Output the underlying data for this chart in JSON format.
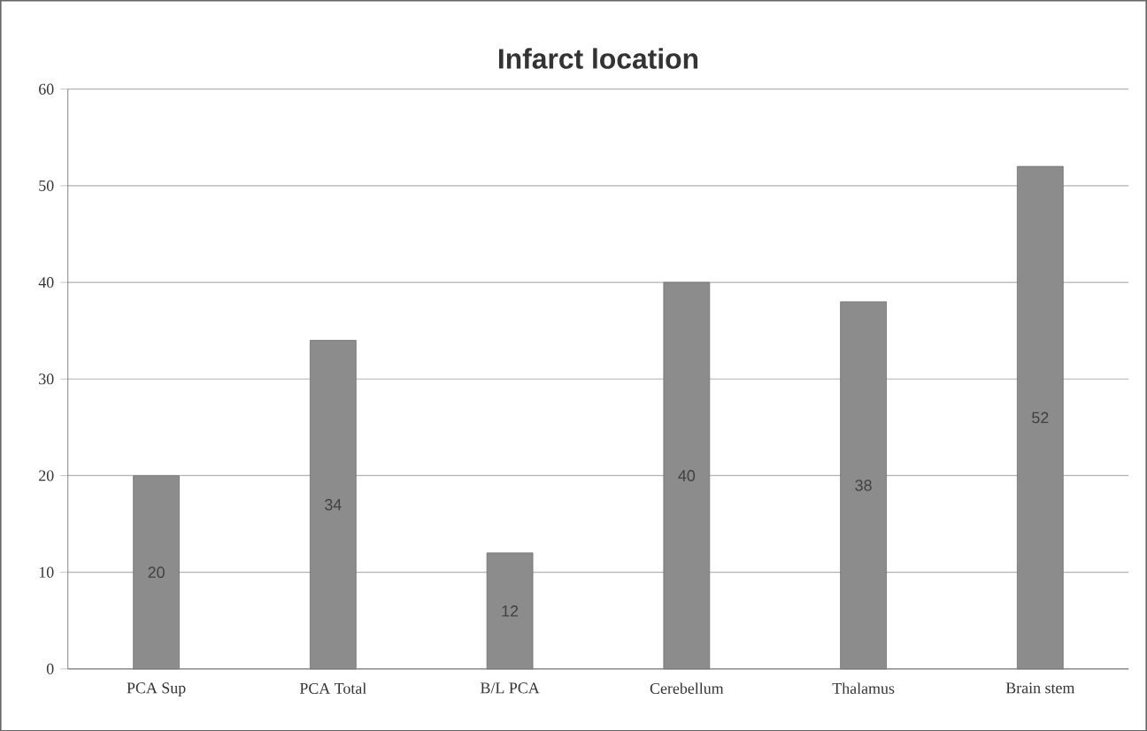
{
  "chart_data": {
    "type": "bar",
    "title": "Infarct location",
    "categories": [
      "PCA Sup",
      "PCA Total",
      "B/L PCA",
      "Cerebellum",
      "Thalamus",
      "Brain stem"
    ],
    "values": [
      20,
      34,
      12,
      40,
      38,
      52
    ],
    "color": "#8c8c8c",
    "ylim": [
      0,
      60
    ],
    "yticks": [
      0,
      10,
      20,
      30,
      40,
      50,
      60
    ],
    "grid": "y",
    "data_labels": true
  }
}
